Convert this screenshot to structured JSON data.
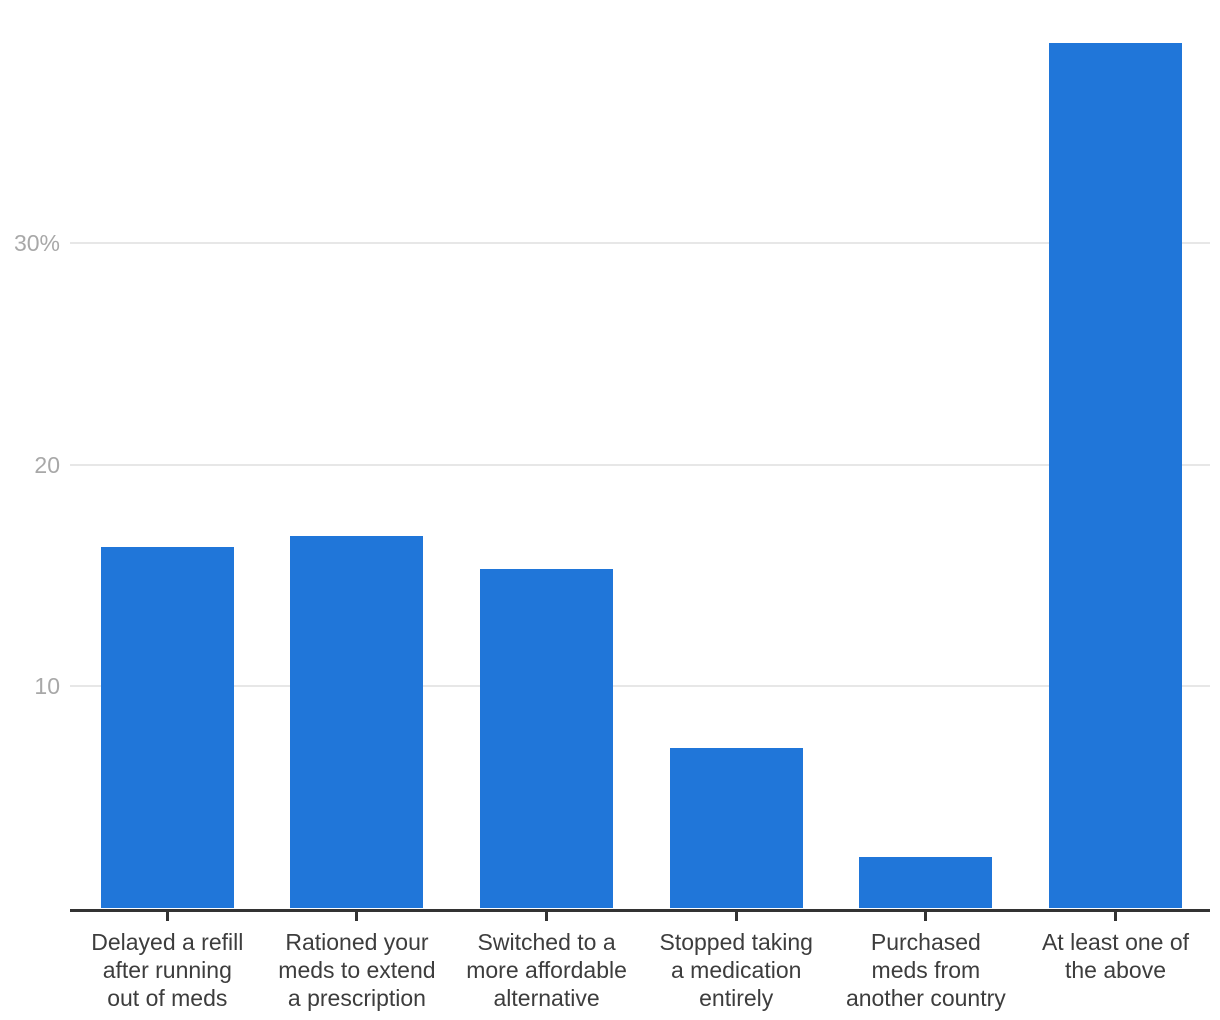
{
  "chart_data": {
    "type": "bar",
    "title": "",
    "xlabel": "",
    "ylabel": "",
    "categories": [
      "Delayed a refill\nafter running\nout of meds",
      "Rationed your\nmeds to extend\na prescription",
      "Switched to a\nmore affordable\nalternative",
      "Stopped taking\na medication\nentirely",
      "Purchased\nmeds from\nanother country",
      "At least one of\nthe above"
    ],
    "values": [
      16.3,
      16.8,
      15.3,
      7.2,
      2.3,
      39.0
    ],
    "value_unit": "%",
    "ylim": [
      0,
      39.5
    ],
    "yticks": [
      {
        "value": 10,
        "label": "10"
      },
      {
        "value": 20,
        "label": "20"
      },
      {
        "value": 30,
        "label": "30%"
      }
    ],
    "grid": "horizontal",
    "legend": "none",
    "colors": {
      "bar": "#2076d9",
      "gridline": "#e7e7e7",
      "axis": "#333333",
      "x_label_text": "#3d3d3d",
      "y_label_text": "#a8a8a8",
      "background": "#ffffff"
    }
  }
}
